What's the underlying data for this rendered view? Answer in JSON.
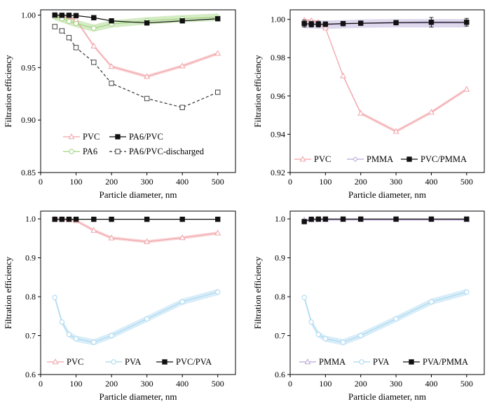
{
  "chart_data": [
    {
      "type": "line",
      "panel": "top-left",
      "xlabel": "Particle diameter, nm",
      "ylabel": "Filtration efficiency",
      "xlim": [
        0,
        550
      ],
      "ylim": [
        0.85,
        1.005
      ],
      "xticks": [
        0,
        100,
        200,
        300,
        400,
        500
      ],
      "yticks": [
        0.85,
        0.9,
        0.95,
        1.0
      ],
      "ytick_labels": [
        "0.85",
        "0.90",
        "0.95",
        "1.00"
      ],
      "legend_position": "bottom",
      "legend_rows": [
        [
          "PVC",
          "PA6/PVC"
        ],
        [
          "PA6",
          "PA6/PVC-discharged"
        ]
      ],
      "series": [
        {
          "name": "PVC",
          "color": "#f2a3a8",
          "marker": "triangle",
          "line": "solid",
          "band": 0.0015,
          "x": [
            40,
            60,
            80,
            100,
            150,
            200,
            300,
            400,
            500
          ],
          "y": [
            0.9995,
            0.9993,
            0.9985,
            0.9955,
            0.9705,
            0.951,
            0.9415,
            0.9515,
            0.9635
          ]
        },
        {
          "name": "PA6",
          "color": "#9fd27c",
          "marker": "circle",
          "line": "solid",
          "band": 0.0035,
          "x": [
            40,
            60,
            80,
            100,
            150,
            200,
            300,
            400,
            500
          ],
          "y": [
            0.9985,
            0.9965,
            0.994,
            0.992,
            0.9875,
            0.9915,
            0.9945,
            0.9965,
            0.998
          ]
        },
        {
          "name": "PA6/PVC",
          "color": "#111111",
          "marker": "square",
          "line": "solid",
          "band": 0,
          "x": [
            40,
            60,
            80,
            100,
            150,
            200,
            300,
            400,
            500
          ],
          "y": [
            1.0,
            0.9998,
            0.9998,
            0.9995,
            0.9975,
            0.9945,
            0.9925,
            0.9945,
            0.9965
          ]
        },
        {
          "name": "PA6/PVC-discharged",
          "color": "#333333",
          "marker": "open-square",
          "line": "dashed",
          "band": 0,
          "x": [
            40,
            60,
            80,
            100,
            150,
            200,
            300,
            400,
            500
          ],
          "y": [
            0.989,
            0.985,
            0.9785,
            0.969,
            0.955,
            0.935,
            0.9205,
            0.912,
            0.9265
          ],
          "err": [
            0.001,
            0.0015,
            0.0015,
            0.0015,
            0.0015,
            0.0015,
            0.0015,
            0.002,
            0.0015
          ]
        }
      ]
    },
    {
      "type": "line",
      "panel": "top-right",
      "xlabel": "Particle diameter, nm",
      "ylabel": "Filtration efficiency",
      "xlim": [
        0,
        550
      ],
      "ylim": [
        0.92,
        1.005
      ],
      "xticks": [
        0,
        100,
        200,
        300,
        400,
        500
      ],
      "yticks": [
        0.92,
        0.94,
        0.96,
        0.98,
        1.0
      ],
      "ytick_labels": [
        "0.92",
        "0.94",
        "0.96",
        "0.98",
        "1.00"
      ],
      "legend_position": "bottom",
      "legend_rows": [
        [
          "PVC",
          "PMMA",
          "PVC/PMMA"
        ]
      ],
      "series": [
        {
          "name": "PVC",
          "color": "#f2a3a8",
          "marker": "triangle",
          "line": "solid",
          "band": 0.0008,
          "x": [
            40,
            60,
            80,
            100,
            150,
            200,
            300,
            400,
            500
          ],
          "y": [
            0.9995,
            0.9993,
            0.9985,
            0.9955,
            0.9705,
            0.951,
            0.9415,
            0.9515,
            0.9635
          ]
        },
        {
          "name": "PMMA",
          "color": "#b9a8d6",
          "marker": "diamond",
          "line": "solid",
          "band": 0.0022,
          "x": [
            40,
            60,
            80,
            100,
            150,
            200,
            300,
            400,
            500
          ],
          "y": [
            0.9975,
            0.9975,
            0.9973,
            0.9972,
            0.9975,
            0.9978,
            0.998,
            0.998,
            0.998
          ]
        },
        {
          "name": "PVC/PMMA",
          "color": "#111111",
          "marker": "square",
          "line": "solid",
          "band": 0,
          "x": [
            40,
            60,
            80,
            100,
            150,
            200,
            300,
            400,
            500
          ],
          "y": [
            0.9978,
            0.9975,
            0.9975,
            0.9975,
            0.9978,
            0.998,
            0.9983,
            0.9985,
            0.9985
          ],
          "err": [
            0.0018,
            0.0015,
            0.0015,
            0.0012,
            0.0005,
            0.0005,
            0.0005,
            0.0025,
            0.002
          ]
        }
      ]
    },
    {
      "type": "line",
      "panel": "bottom-left",
      "xlabel": "Particle diameter, nm",
      "ylabel": "Filtration efficiency",
      "xlim": [
        0,
        550
      ],
      "ylim": [
        0.6,
        1.02
      ],
      "xticks": [
        0,
        100,
        200,
        300,
        400,
        500
      ],
      "yticks": [
        0.6,
        0.7,
        0.8,
        0.9,
        1.0
      ],
      "ytick_labels": [
        "0.6",
        "0.7",
        "0.8",
        "0.9",
        "1.0"
      ],
      "legend_position": "bottom",
      "legend_rows": [
        [
          "PVC",
          "PVA",
          "PVC/PVA"
        ]
      ],
      "series": [
        {
          "name": "PVC",
          "color": "#f2a3a8",
          "marker": "triangle",
          "line": "solid",
          "band": 0.004,
          "x": [
            40,
            60,
            80,
            100,
            150,
            200,
            300,
            400,
            500
          ],
          "y": [
            0.9995,
            0.9993,
            0.9985,
            0.9955,
            0.9705,
            0.951,
            0.9415,
            0.9515,
            0.9635
          ]
        },
        {
          "name": "PVA",
          "color": "#a9d8f0",
          "marker": "circle",
          "line": "solid",
          "band": 0.008,
          "x": [
            40,
            60,
            80,
            100,
            150,
            200,
            300,
            400,
            500
          ],
          "y": [
            0.798,
            0.735,
            0.703,
            0.692,
            0.683,
            0.7,
            0.743,
            0.787,
            0.812
          ]
        },
        {
          "name": "PVC/PVA",
          "color": "#111111",
          "marker": "square",
          "line": "solid",
          "band": 0,
          "x": [
            40,
            60,
            80,
            100,
            150,
            200,
            300,
            400,
            500
          ],
          "y": [
            0.999,
            0.999,
            0.999,
            0.999,
            0.999,
            0.999,
            0.999,
            0.999,
            0.999
          ]
        }
      ]
    },
    {
      "type": "line",
      "panel": "bottom-right",
      "xlabel": "Particle diameter, nm",
      "ylabel": "Filtration efficiency",
      "xlim": [
        0,
        550
      ],
      "ylim": [
        0.6,
        1.02
      ],
      "xticks": [
        0,
        100,
        200,
        300,
        400,
        500
      ],
      "yticks": [
        0.6,
        0.7,
        0.8,
        0.9,
        1.0
      ],
      "ytick_labels": [
        "0.6",
        "0.7",
        "0.8",
        "0.9",
        "1.0"
      ],
      "legend_position": "bottom",
      "legend_rows": [
        [
          "PMMA",
          "PVA",
          "PVA/PMMA"
        ]
      ],
      "series": [
        {
          "name": "PMMA",
          "color": "#b9a8d6",
          "marker": "triangle",
          "line": "solid",
          "band": 0.003,
          "x": [
            40,
            60,
            80,
            100,
            150,
            200,
            300,
            400,
            500
          ],
          "y": [
            0.997,
            0.998,
            0.998,
            0.998,
            0.998,
            0.998,
            0.998,
            0.998,
            0.998
          ]
        },
        {
          "name": "PVA",
          "color": "#a9d8f0",
          "marker": "circle",
          "line": "solid",
          "band": 0.008,
          "x": [
            40,
            60,
            80,
            100,
            150,
            200,
            300,
            400,
            500
          ],
          "y": [
            0.798,
            0.735,
            0.703,
            0.692,
            0.683,
            0.7,
            0.743,
            0.787,
            0.812
          ]
        },
        {
          "name": "PVA/PMMA",
          "color": "#111111",
          "marker": "square",
          "line": "solid",
          "band": 0,
          "x": [
            40,
            60,
            80,
            100,
            150,
            200,
            300,
            400,
            500
          ],
          "y": [
            0.993,
            0.999,
            0.9995,
            0.9995,
            0.9995,
            0.9995,
            0.9995,
            0.9995,
            0.9995
          ]
        }
      ]
    }
  ]
}
